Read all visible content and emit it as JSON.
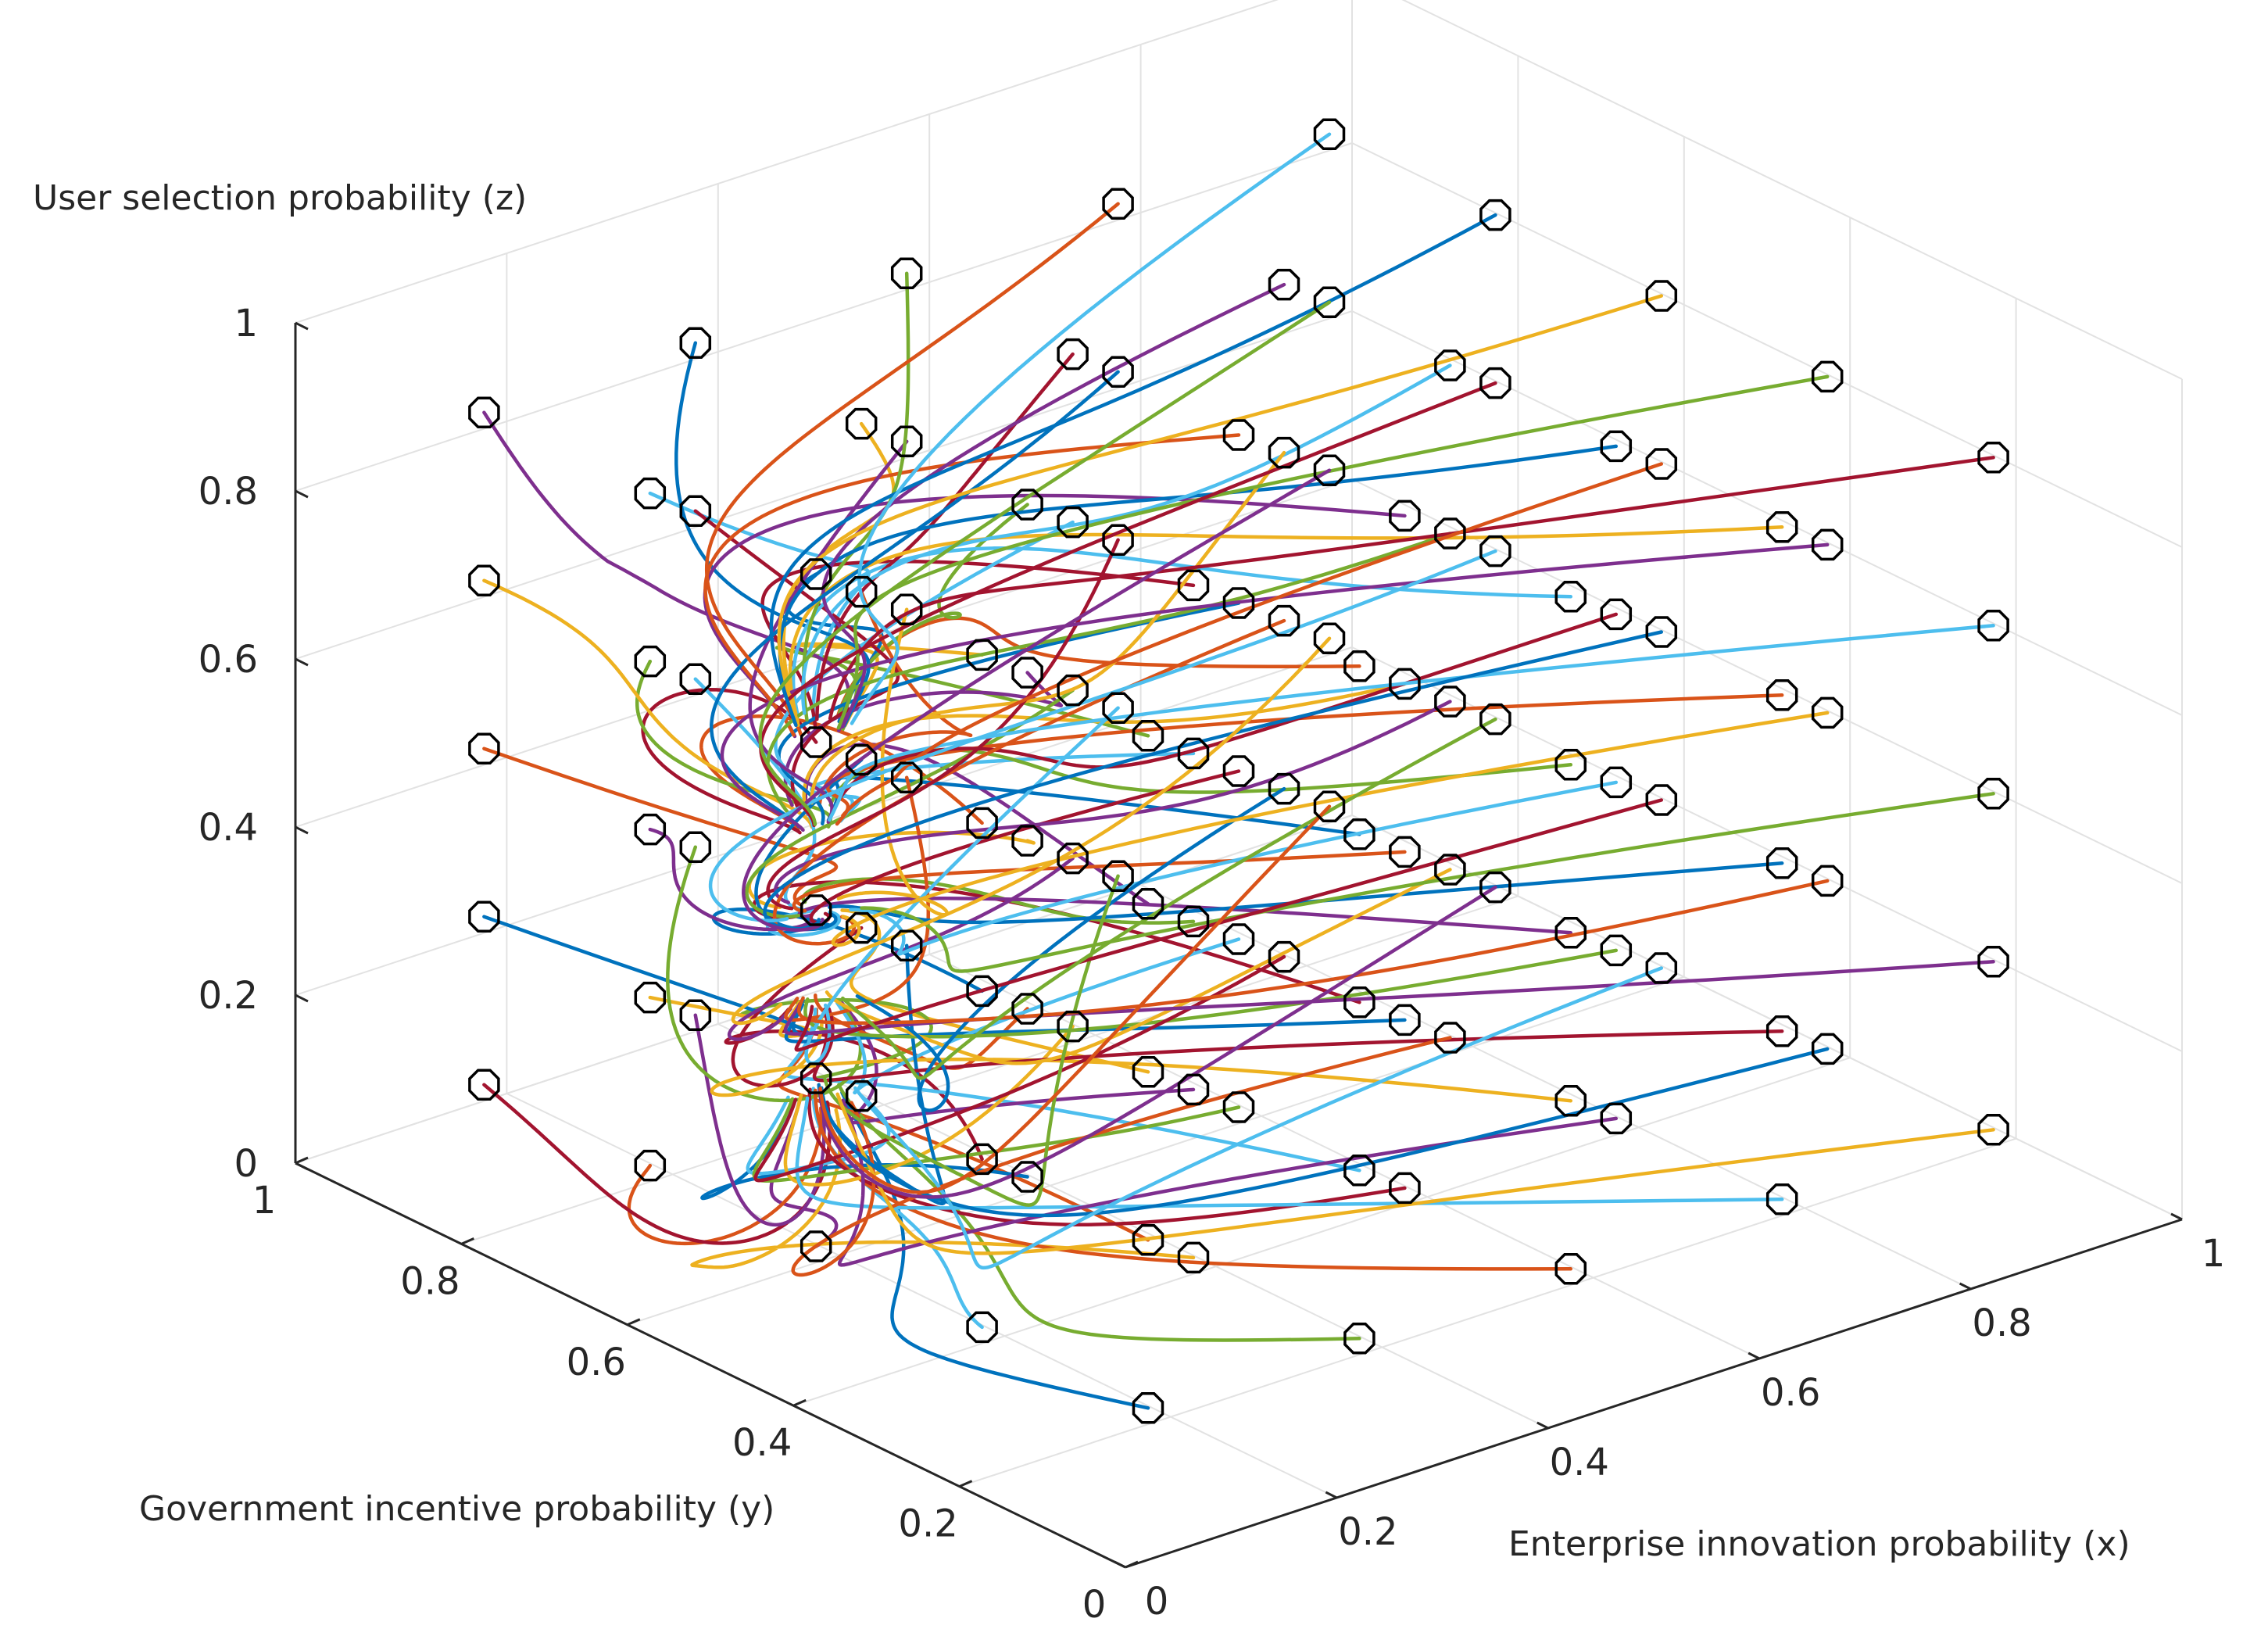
{
  "chart_data": {
    "type": "line",
    "subtype": "3d-phase-trajectories",
    "title": "",
    "xlabel": "Enterprise innovation probability (x)",
    "ylabel": "Government incentive probability (y)",
    "zlabel": "User selection probability (z)",
    "xlim": [
      0,
      1
    ],
    "ylim": [
      0,
      1
    ],
    "zlim": [
      0,
      1
    ],
    "x_ticks": [
      0,
      0.2,
      0.4,
      0.6,
      0.8,
      1
    ],
    "y_ticks": [
      0,
      0.2,
      0.4,
      0.6,
      0.8,
      1
    ],
    "z_ticks": [
      0,
      0.2,
      0.4,
      0.6,
      0.8,
      1
    ],
    "x_tick_labels": [
      "0",
      "0.2",
      "0.4",
      "0.6",
      "0.8",
      "1"
    ],
    "y_tick_labels": [
      "0",
      "0.2",
      "0.4",
      "0.6",
      "0.8",
      "1"
    ],
    "z_tick_labels": [
      "0",
      "0.2",
      "0.4",
      "0.6",
      "0.8",
      "1"
    ],
    "grid": true,
    "initial_values": [
      0.1,
      0.3,
      0.5,
      0.7,
      0.9
    ],
    "colors": [
      "#0072BD",
      "#D95319",
      "#EDB120",
      "#7E2F8E",
      "#77AC30",
      "#4DBEEE",
      "#A2142F"
    ],
    "marker": "octagon",
    "convergence_point": {
      "x": 0.1,
      "y": 0.5,
      "z": 0.5
    },
    "convergence_column": {
      "x": 0.1,
      "y": 0.5
    },
    "series_note": "125 trajectories; starting points on grid of initial values for x, y, z; each curve spirals toward the column x=0.1, y=0.5 then converges to the equilibrium"
  }
}
